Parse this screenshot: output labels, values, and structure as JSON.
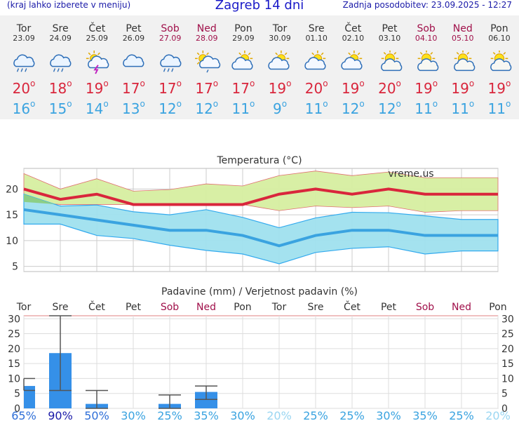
{
  "header": {
    "note": "(kraj lahko izberete v meniju)",
    "title": "Zagreb 14 dni",
    "updated": "Zadnja posodobitev: 23.09.2025 - 12:27"
  },
  "days": [
    {
      "name": "Tor",
      "date": "23.09",
      "weekend": false,
      "icon": "rain-cloud-icon",
      "max": "20",
      "min": "16"
    },
    {
      "name": "Sre",
      "date": "24.09",
      "weekend": false,
      "icon": "rain-cloud-icon",
      "max": "18",
      "min": "15"
    },
    {
      "name": "Čet",
      "date": "25.09",
      "weekend": false,
      "icon": "thunderstorm-sun-icon",
      "max": "19",
      "min": "14"
    },
    {
      "name": "Pet",
      "date": "26.09",
      "weekend": false,
      "icon": "cloud-icon",
      "max": "17",
      "min": "13"
    },
    {
      "name": "Sob",
      "date": "27.09",
      "weekend": true,
      "icon": "rain-cloud-icon",
      "max": "17",
      "min": "12"
    },
    {
      "name": "Ned",
      "date": "28.09",
      "weekend": true,
      "icon": "sun-cloud-rain-icon",
      "max": "17",
      "min": "12"
    },
    {
      "name": "Pon",
      "date": "29.09",
      "weekend": false,
      "icon": "partly-cloudy-icon",
      "max": "17",
      "min": "11"
    },
    {
      "name": "Tor",
      "date": "30.09",
      "weekend": false,
      "icon": "partly-cloudy-icon",
      "max": "19",
      "min": "9"
    },
    {
      "name": "Sre",
      "date": "01.10",
      "weekend": false,
      "icon": "partly-cloudy-icon",
      "max": "20",
      "min": "11"
    },
    {
      "name": "Čet",
      "date": "02.10",
      "weekend": false,
      "icon": "partly-cloudy-icon",
      "max": "19",
      "min": "12"
    },
    {
      "name": "Pet",
      "date": "03.10",
      "weekend": false,
      "icon": "sunny-cloud-icon",
      "max": "20",
      "min": "12"
    },
    {
      "name": "Sob",
      "date": "04.10",
      "weekend": true,
      "icon": "sunny-cloud-icon",
      "max": "19",
      "min": "11"
    },
    {
      "name": "Ned",
      "date": "05.10",
      "weekend": true,
      "icon": "sunny-cloud-icon",
      "max": "19",
      "min": "11"
    },
    {
      "name": "Pon",
      "date": "06.10",
      "weekend": false,
      "icon": "sunny-cloud-icon",
      "max": "19",
      "min": "11"
    }
  ],
  "colors": {
    "max_line": "#d9263c",
    "min_line": "#3aa3e0",
    "max_band": "#d6eea0",
    "min_band": "#9fe0ee",
    "overlap_band": "#8ccf86",
    "precip_bar": "#3590e8",
    "weekend": "#a0104a"
  },
  "chart_data": [
    {
      "type": "line",
      "title": "Temperatura (°C)",
      "watermark": "vreme.us",
      "ylim": [
        4,
        24
      ],
      "yticks": [
        5,
        10,
        15,
        20
      ],
      "grid": true,
      "x": [
        "Tor",
        "Sre",
        "Čet",
        "Pet",
        "Sob",
        "Ned",
        "Pon",
        "Tor",
        "Sre",
        "Čet",
        "Pet",
        "Sob",
        "Ned",
        "Pon"
      ],
      "series": [
        {
          "kind": "max",
          "values": [
            20,
            18,
            19,
            17,
            17,
            17,
            17,
            19,
            20,
            19,
            20,
            19,
            19,
            19
          ],
          "upper": [
            23,
            20,
            22,
            19.6,
            19.9,
            21,
            20.6,
            22.6,
            23.5,
            22.6,
            23.3,
            22.2,
            22.2,
            22.2
          ],
          "lower": [
            17.5,
            17,
            17,
            17,
            17,
            17,
            17,
            15.8,
            16.7,
            16.4,
            16.7,
            15.5,
            15.8,
            15.8
          ]
        },
        {
          "kind": "min",
          "values": [
            16,
            15,
            14,
            13,
            12,
            12,
            11,
            9,
            11,
            12,
            12,
            11,
            11,
            11
          ],
          "upper": [
            19,
            16.7,
            16.9,
            15.6,
            15,
            16,
            14.5,
            12.5,
            14.4,
            15.5,
            15.4,
            14.8,
            14.1,
            14.1
          ],
          "lower": [
            13.2,
            13.2,
            11,
            10.4,
            9.1,
            8.1,
            7.4,
            5.5,
            7.7,
            8.5,
            8.8,
            7.4,
            8,
            8
          ]
        }
      ]
    },
    {
      "type": "bar",
      "title": "Padavine (mm) / Verjetnost padavin (%)",
      "ylim": [
        0,
        31
      ],
      "yticks": [
        0,
        5,
        10,
        15,
        20,
        25,
        30
      ],
      "categories": [
        "Tor",
        "Sre",
        "Čet",
        "Pet",
        "Sob",
        "Ned",
        "Pon",
        "Tor",
        "Sre",
        "Čet",
        "Pet",
        "Sob",
        "Ned",
        "Pon"
      ],
      "values": [
        7.5,
        18.5,
        1.5,
        0,
        1.5,
        5.5,
        0,
        0,
        0,
        0,
        0,
        0,
        0,
        0
      ],
      "range_low": [
        6,
        6,
        0,
        null,
        0,
        3,
        null,
        null,
        null,
        null,
        null,
        null,
        null,
        null
      ],
      "range_high": [
        10,
        31,
        6,
        null,
        4.5,
        7.5,
        null,
        null,
        null,
        null,
        null,
        null,
        null,
        null
      ],
      "probabilities": [
        "65%",
        "90%",
        "50%",
        "30%",
        "25%",
        "35%",
        "30%",
        "20%",
        "25%",
        "25%",
        "30%",
        "35%",
        "25%",
        "20%"
      ],
      "probability_values": [
        65,
        90,
        50,
        30,
        25,
        35,
        30,
        20,
        25,
        25,
        30,
        35,
        25,
        20
      ]
    }
  ]
}
